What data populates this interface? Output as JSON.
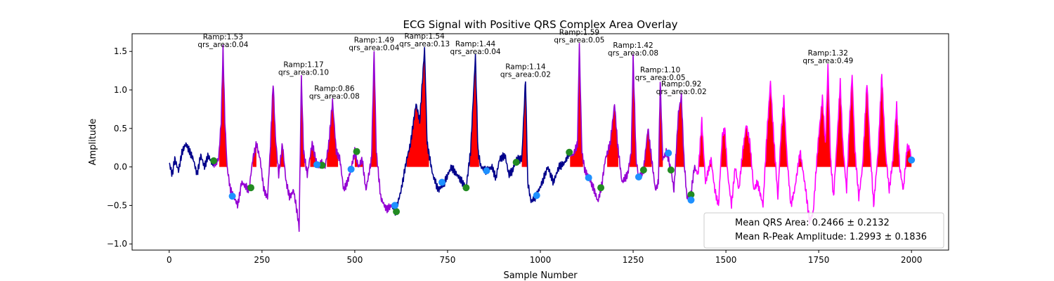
{
  "chart_data": {
    "type": "line",
    "title": "ECG Signal with Positive QRS Complex Area Overlay",
    "xlabel": "Sample Number",
    "ylabel": "Amplitude",
    "xlim": [
      -100,
      2100
    ],
    "ylim": [
      -1.08,
      1.73
    ],
    "x_ticks": [
      0,
      250,
      500,
      750,
      1000,
      1250,
      1500,
      1750,
      2000
    ],
    "y_ticks": [
      -1.0,
      -0.5,
      0.0,
      0.5,
      1.0,
      1.5
    ],
    "x_tick_labels": [
      "0",
      "250",
      "500",
      "750",
      "1000",
      "1250",
      "1500",
      "1750",
      "2000"
    ],
    "y_tick_labels": [
      "−1.0",
      "−0.5",
      "0.0",
      "0.5",
      "1.0",
      "1.5"
    ],
    "grid": false,
    "colors": {
      "raw_signal": "#00008b",
      "early_segment": "#9400d3",
      "late_segment": "#ff00ff",
      "qrs_area_fill": "#ff0000",
      "onset_marker": "#228b22",
      "offset_marker": "#1e90ff"
    },
    "signal_keypoints": [
      [
        0,
        0.05
      ],
      [
        8,
        -0.1
      ],
      [
        15,
        0.1
      ],
      [
        25,
        -0.05
      ],
      [
        35,
        0.2
      ],
      [
        45,
        0.3
      ],
      [
        55,
        0.2
      ],
      [
        65,
        0.1
      ],
      [
        75,
        -0.1
      ],
      [
        85,
        0.15
      ],
      [
        95,
        0.0
      ],
      [
        105,
        0.15
      ],
      [
        115,
        0.05
      ],
      [
        125,
        0.05
      ],
      [
        133,
        0.1
      ],
      [
        140,
        0.6
      ],
      [
        145,
        1.53
      ],
      [
        150,
        0.6
      ],
      [
        156,
        0.0
      ],
      [
        165,
        -0.3
      ],
      [
        175,
        -0.4
      ],
      [
        185,
        -0.5
      ],
      [
        195,
        -0.2
      ],
      [
        205,
        -0.25
      ],
      [
        215,
        -0.3
      ],
      [
        225,
        0.1
      ],
      [
        235,
        0.3
      ],
      [
        245,
        0.1
      ],
      [
        255,
        -0.3
      ],
      [
        265,
        -0.4
      ],
      [
        272,
        0.2
      ],
      [
        280,
        1.1
      ],
      [
        286,
        0.4
      ],
      [
        295,
        -0.1
      ],
      [
        305,
        0.3
      ],
      [
        315,
        -0.2
      ],
      [
        325,
        -0.4
      ],
      [
        335,
        -0.3
      ],
      [
        345,
        -0.6
      ],
      [
        350,
        -0.8
      ],
      [
        356,
        1.17
      ],
      [
        362,
        0.2
      ],
      [
        372,
        -0.1
      ],
      [
        385,
        0.3
      ],
      [
        400,
        0.0
      ],
      [
        410,
        0.05
      ],
      [
        420,
        0.0
      ],
      [
        430,
        0.3
      ],
      [
        440,
        0.86
      ],
      [
        450,
        0.2
      ],
      [
        460,
        0.1
      ],
      [
        470,
        -0.3
      ],
      [
        480,
        -0.2
      ],
      [
        490,
        -0.03
      ],
      [
        500,
        0.2
      ],
      [
        510,
        0.0
      ],
      [
        520,
        0.1
      ],
      [
        530,
        -0.3
      ],
      [
        545,
        0.1
      ],
      [
        552,
        1.49
      ],
      [
        558,
        0.2
      ],
      [
        570,
        -0.4
      ],
      [
        585,
        -0.55
      ],
      [
        600,
        -0.5
      ],
      [
        610,
        -0.58
      ],
      [
        625,
        -0.3
      ],
      [
        640,
        0.1
      ],
      [
        650,
        0.3
      ],
      [
        665,
        0.82
      ],
      [
        675,
        0.6
      ],
      [
        688,
        1.54
      ],
      [
        695,
        0.3
      ],
      [
        710,
        -0.1
      ],
      [
        725,
        -0.3
      ],
      [
        740,
        -0.22
      ],
      [
        760,
        0.0
      ],
      [
        775,
        -0.1
      ],
      [
        790,
        -0.2
      ],
      [
        800,
        -0.27
      ],
      [
        812,
        0.2
      ],
      [
        825,
        1.44
      ],
      [
        832,
        0.2
      ],
      [
        840,
        0.0
      ],
      [
        855,
        -0.05
      ],
      [
        870,
        0.0
      ],
      [
        880,
        -0.15
      ],
      [
        890,
        0.1
      ],
      [
        905,
        0.15
      ],
      [
        915,
        -0.1
      ],
      [
        925,
        -0.05
      ],
      [
        935,
        0.1
      ],
      [
        950,
        0.1
      ],
      [
        960,
        1.14
      ],
      [
        966,
        -0.2
      ],
      [
        975,
        -0.45
      ],
      [
        990,
        -0.37
      ],
      [
        1005,
        -0.2
      ],
      [
        1020,
        0.0
      ],
      [
        1035,
        -0.2
      ],
      [
        1050,
        0.0
      ],
      [
        1065,
        0.05
      ],
      [
        1078,
        0.19
      ],
      [
        1088,
        0.15
      ],
      [
        1100,
        0.3
      ],
      [
        1105,
        1.59
      ],
      [
        1112,
        0.2
      ],
      [
        1120,
        -0.05
      ],
      [
        1132,
        -0.15
      ],
      [
        1145,
        -0.3
      ],
      [
        1155,
        -0.45
      ],
      [
        1165,
        -0.25
      ],
      [
        1175,
        0.1
      ],
      [
        1188,
        0.3
      ],
      [
        1200,
        0.82
      ],
      [
        1208,
        0.3
      ],
      [
        1220,
        -0.2
      ],
      [
        1235,
        -0.1
      ],
      [
        1245,
        0.2
      ],
      [
        1250,
        1.42
      ],
      [
        1258,
        0.1
      ],
      [
        1265,
        -0.14
      ],
      [
        1278,
        -0.04
      ],
      [
        1290,
        0.5
      ],
      [
        1300,
        0.1
      ],
      [
        1310,
        -0.3
      ],
      [
        1318,
        -0.2
      ],
      [
        1323,
        1.1
      ],
      [
        1330,
        0.1
      ],
      [
        1340,
        0.2
      ],
      [
        1352,
        -0.04
      ],
      [
        1360,
        -0.3
      ],
      [
        1372,
        0.7
      ],
      [
        1380,
        0.92
      ],
      [
        1387,
        0.1
      ],
      [
        1395,
        -0.4
      ],
      [
        1406,
        -0.35
      ],
      [
        1415,
        0.0
      ],
      [
        1425,
        -0.1
      ],
      [
        1435,
        0.6
      ],
      [
        1445,
        -0.2
      ],
      [
        1460,
        0.1
      ],
      [
        1470,
        -0.3
      ],
      [
        1480,
        -0.5
      ],
      [
        1490,
        0.4
      ],
      [
        1497,
        0.5
      ],
      [
        1505,
        -0.1
      ],
      [
        1515,
        -0.5
      ],
      [
        1525,
        0.0
      ],
      [
        1535,
        -0.3
      ],
      [
        1545,
        0.2
      ],
      [
        1555,
        0.55
      ],
      [
        1565,
        0.3
      ],
      [
        1575,
        -0.3
      ],
      [
        1585,
        -0.2
      ],
      [
        1600,
        -0.5
      ],
      [
        1610,
        0.4
      ],
      [
        1620,
        1.1
      ],
      [
        1630,
        0.3
      ],
      [
        1640,
        -0.4
      ],
      [
        1648,
        0.4
      ],
      [
        1656,
        0.9
      ],
      [
        1665,
        0.1
      ],
      [
        1675,
        -0.5
      ],
      [
        1685,
        -0.3
      ],
      [
        1700,
        0.2
      ],
      [
        1715,
        -0.3
      ],
      [
        1725,
        -0.7
      ],
      [
        1735,
        -0.6
      ],
      [
        1748,
        0.3
      ],
      [
        1760,
        0.9
      ],
      [
        1768,
        0.3
      ],
      [
        1775,
        1.32
      ],
      [
        1782,
        0.1
      ],
      [
        1790,
        -0.4
      ],
      [
        1800,
        0.4
      ],
      [
        1808,
        1.1
      ],
      [
        1815,
        0.3
      ],
      [
        1825,
        -0.3
      ],
      [
        1832,
        0.5
      ],
      [
        1840,
        1.2
      ],
      [
        1848,
        0.2
      ],
      [
        1858,
        -0.4
      ],
      [
        1868,
        0.0
      ],
      [
        1880,
        1.1
      ],
      [
        1888,
        0.3
      ],
      [
        1898,
        -0.5
      ],
      [
        1910,
        0.2
      ],
      [
        1920,
        1.2
      ],
      [
        1930,
        0.2
      ],
      [
        1940,
        -0.3
      ],
      [
        1950,
        0.1
      ],
      [
        1960,
        0.8
      ],
      [
        1968,
        0.0
      ],
      [
        1978,
        -0.3
      ],
      [
        1988,
        0.25
      ],
      [
        1995,
        0.25
      ],
      [
        2000,
        0.09
      ]
    ],
    "segments": [
      {
        "from": 0,
        "to": 120,
        "style": "raw_signal"
      },
      {
        "from": 120,
        "to": 600,
        "style": "early_segment"
      },
      {
        "from": 600,
        "to": 1080,
        "style": "raw_signal"
      },
      {
        "from": 1080,
        "to": 1420,
        "style": "early_segment"
      },
      {
        "from": 1420,
        "to": 2000,
        "style": "late_segment"
      }
    ],
    "qrs_areas": [
      {
        "start": 135,
        "end": 156
      },
      {
        "start": 225,
        "end": 235
      },
      {
        "start": 270,
        "end": 290
      },
      {
        "start": 300,
        "end": 320
      },
      {
        "start": 350,
        "end": 365
      },
      {
        "start": 380,
        "end": 420
      },
      {
        "start": 425,
        "end": 455
      },
      {
        "start": 500,
        "end": 560
      },
      {
        "start": 640,
        "end": 700
      },
      {
        "start": 810,
        "end": 835
      },
      {
        "start": 950,
        "end": 966
      },
      {
        "start": 1080,
        "end": 1115
      },
      {
        "start": 1180,
        "end": 1210
      },
      {
        "start": 1240,
        "end": 1262
      },
      {
        "start": 1280,
        "end": 1300
      },
      {
        "start": 1315,
        "end": 1330
      },
      {
        "start": 1365,
        "end": 1390
      },
      {
        "start": 1420,
        "end": 2000
      }
    ],
    "onset_markers": [
      [
        120,
        0.08
      ],
      [
        220,
        -0.27
      ],
      [
        412,
        0.02
      ],
      [
        505,
        0.2
      ],
      [
        612,
        -0.58
      ],
      [
        800,
        -0.27
      ],
      [
        935,
        0.06
      ],
      [
        1078,
        0.19
      ],
      [
        1163,
        -0.27
      ],
      [
        1278,
        -0.04
      ],
      [
        1352,
        -0.04
      ],
      [
        1406,
        -0.36
      ]
    ],
    "offset_markers": [
      [
        170,
        -0.38
      ],
      [
        398,
        0.03
      ],
      [
        490,
        -0.03
      ],
      [
        608,
        -0.5
      ],
      [
        735,
        -0.2
      ],
      [
        855,
        -0.05
      ],
      [
        990,
        -0.37
      ],
      [
        1130,
        -0.14
      ],
      [
        1265,
        -0.13
      ],
      [
        1345,
        0.18
      ],
      [
        1406,
        -0.43
      ],
      [
        2000,
        0.09
      ]
    ],
    "annotations": [
      {
        "x": 145,
        "y_data": 1.53,
        "line1": "Ramp:1.53",
        "line2": "qrs_area:0.04"
      },
      {
        "x": 362,
        "y_data": 1.17,
        "line1": "Ramp:1.17",
        "line2": "qrs_area:0.10"
      },
      {
        "x": 445,
        "y_data": 0.86,
        "line1": "Ramp:0.86",
        "line2": "qrs_area:0.08"
      },
      {
        "x": 552,
        "y_data": 1.49,
        "line1": "Ramp:1.49",
        "line2": "qrs_area:0.04"
      },
      {
        "x": 688,
        "y_data": 1.54,
        "line1": "Ramp:1.54",
        "line2": "qrs_area:0.13"
      },
      {
        "x": 825,
        "y_data": 1.44,
        "line1": "Ramp:1.44",
        "line2": "qrs_area:0.04"
      },
      {
        "x": 960,
        "y_data": 1.14,
        "line1": "Ramp:1.14",
        "line2": "qrs_area:0.02"
      },
      {
        "x": 1105,
        "y_data": 1.59,
        "line1": "Ramp:1.59",
        "line2": "qrs_area:0.05"
      },
      {
        "x": 1250,
        "y_data": 1.42,
        "line1": "Ramp:1.42",
        "line2": "qrs_area:0.08"
      },
      {
        "x": 1323,
        "y_data": 1.1,
        "line1": "Ramp:1.10",
        "line2": "qrs_area:0.05"
      },
      {
        "x": 1380,
        "y_data": 0.92,
        "line1": "Ramp:0.92",
        "line2": "qrs_area:0.02"
      },
      {
        "x": 1775,
        "y_data": 1.32,
        "line1": "Ramp:1.32",
        "line2": "qrs_area:0.49"
      }
    ],
    "legend": {
      "placement": "lower-right",
      "entries": [
        "Mean QRS Area: 0.2466 ± 0.2132",
        "Mean R-Peak Amplitude: 1.2993 ± 0.1836"
      ]
    }
  }
}
